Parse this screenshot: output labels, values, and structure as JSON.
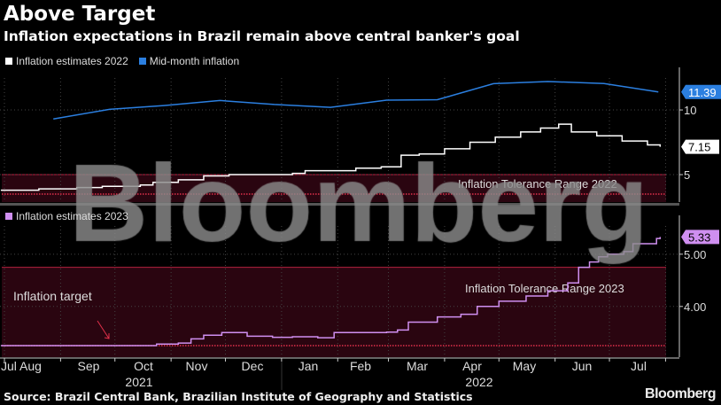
{
  "title": "Above Target",
  "subtitle": "Inflation expectations in Brazil remain above central banker's goal",
  "source": "Source: Brazil Central Bank, Brazilian Institute of Geography and Statistics",
  "logo": "Bloomberg",
  "watermark": "Bloomberg",
  "colors": {
    "white_series": "#ffffff",
    "blue_series": "#2b7fe0",
    "purple_series": "#cf8ff0",
    "tolerance_fill": "#2a0510",
    "tolerance_line": "#b5223f",
    "grid": "#444444"
  },
  "chart_data": [
    {
      "type": "line",
      "legend": [
        {
          "label": "Inflation estimates 2022",
          "color": "#ffffff"
        },
        {
          "label": "Mid-month inflation",
          "color": "#2b7fe0"
        }
      ],
      "ylim": [
        2.88,
        12.47
      ],
      "yticks": [
        {
          "value": 5,
          "label": "5"
        },
        {
          "value": 10,
          "label": "10"
        }
      ],
      "band": {
        "label": "Inflation Tolerance Range 2022",
        "upper": 5.0,
        "target": 3.5
      },
      "series": [
        {
          "name": "Inflation estimates 2022",
          "color": "#ffffff",
          "step": true,
          "last_label": "7.15",
          "points": [
            [
              "2021-07-30",
              3.8
            ],
            [
              "2021-08-20",
              3.9
            ],
            [
              "2021-09-10",
              4.0
            ],
            [
              "2021-09-24",
              4.1
            ],
            [
              "2021-10-15",
              4.2
            ],
            [
              "2021-10-22",
              4.4
            ],
            [
              "2021-11-05",
              4.6
            ],
            [
              "2021-11-19",
              4.9
            ],
            [
              "2021-12-03",
              5.0
            ],
            [
              "2021-12-24",
              5.0
            ],
            [
              "2022-01-07",
              5.1
            ],
            [
              "2022-01-14",
              5.3
            ],
            [
              "2022-02-11",
              5.5
            ],
            [
              "2022-02-25",
              5.6
            ],
            [
              "2022-03-08",
              6.5
            ],
            [
              "2022-03-18",
              6.6
            ],
            [
              "2022-04-01",
              7.0
            ],
            [
              "2022-04-15",
              7.5
            ],
            [
              "2022-04-29",
              7.9
            ],
            [
              "2022-05-13",
              8.3
            ],
            [
              "2022-05-24",
              8.6
            ],
            [
              "2022-06-03",
              8.9
            ],
            [
              "2022-06-10",
              8.3
            ],
            [
              "2022-06-24",
              8.0
            ],
            [
              "2022-07-08",
              7.6
            ],
            [
              "2022-07-22",
              7.3
            ],
            [
              "2022-07-29",
              7.15
            ]
          ]
        },
        {
          "name": "Mid-month inflation",
          "color": "#2b7fe0",
          "step": false,
          "last_label": "11.39",
          "points": [
            [
              "2021-08-28",
              9.3
            ],
            [
              "2021-09-28",
              10.05
            ],
            [
              "2021-10-28",
              10.34
            ],
            [
              "2021-11-28",
              10.73
            ],
            [
              "2021-12-28",
              10.42
            ],
            [
              "2022-01-28",
              10.2
            ],
            [
              "2022-02-28",
              10.76
            ],
            [
              "2022-03-28",
              10.79
            ],
            [
              "2022-04-28",
              12.03
            ],
            [
              "2022-05-28",
              12.2
            ],
            [
              "2022-06-28",
              12.04
            ],
            [
              "2022-07-28",
              11.39
            ]
          ]
        }
      ]
    },
    {
      "type": "line",
      "legend": [
        {
          "label": "Inflation estimates 2023",
          "color": "#cf8ff0"
        }
      ],
      "ylim": [
        3.03,
        5.54
      ],
      "yticks": [
        {
          "value": 4,
          "label": "4.00"
        },
        {
          "value": 5,
          "label": "5.00"
        }
      ],
      "band": {
        "label": "Inflation Tolerance Range 2023",
        "upper": 4.75,
        "target": 3.25
      },
      "annotation": "Inflation target",
      "series": [
        {
          "name": "Inflation estimates 2023",
          "color": "#cf8ff0",
          "step": true,
          "last_label": "5.33",
          "points": [
            [
              "2021-07-30",
              3.25
            ],
            [
              "2021-10-24",
              3.28
            ],
            [
              "2021-11-05",
              3.3
            ],
            [
              "2021-11-12",
              3.38
            ],
            [
              "2021-11-19",
              3.45
            ],
            [
              "2021-11-29",
              3.5
            ],
            [
              "2021-12-13",
              3.43
            ],
            [
              "2021-12-27",
              3.41
            ],
            [
              "2022-01-07",
              3.42
            ],
            [
              "2022-01-21",
              3.4
            ],
            [
              "2022-01-30",
              3.5
            ],
            [
              "2022-02-28",
              3.51
            ],
            [
              "2022-03-06",
              3.55
            ],
            [
              "2022-03-12",
              3.7
            ],
            [
              "2022-03-28",
              3.8
            ],
            [
              "2022-04-10",
              3.85
            ],
            [
              "2022-04-19",
              4.0
            ],
            [
              "2022-05-01",
              4.1
            ],
            [
              "2022-05-16",
              4.2
            ],
            [
              "2022-05-28",
              4.3
            ],
            [
              "2022-06-08",
              4.45
            ],
            [
              "2022-06-14",
              4.75
            ],
            [
              "2022-06-20",
              4.85
            ],
            [
              "2022-06-25",
              4.95
            ],
            [
              "2022-06-30",
              5.0
            ],
            [
              "2022-07-09",
              5.05
            ],
            [
              "2022-07-14",
              5.2
            ],
            [
              "2022-07-27",
              5.3
            ],
            [
              "2022-07-29",
              5.33
            ]
          ]
        }
      ]
    }
  ],
  "xaxis": {
    "months": [
      "Jul",
      "Aug",
      "Sep",
      "Oct",
      "Nov",
      "Dec",
      "Jan",
      "Feb",
      "Mar",
      "Apr",
      "May",
      "Jun",
      "Jul"
    ],
    "years": [
      "2021",
      "2022"
    ]
  }
}
